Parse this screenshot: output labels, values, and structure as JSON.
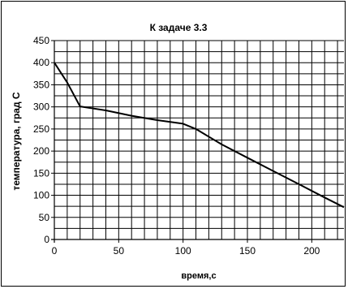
{
  "chart_data": {
    "type": "line",
    "title": "К задаче 3.3",
    "xlabel": "время,с",
    "ylabel": "температура, град С",
    "xlim": [
      0,
      225
    ],
    "ylim": [
      0,
      450
    ],
    "x_ticks": [
      0,
      50,
      100,
      150,
      200
    ],
    "y_ticks": [
      0,
      50,
      100,
      150,
      200,
      250,
      300,
      350,
      400,
      450
    ],
    "x_minor_step": 10,
    "y_minor_step": 25,
    "grid": true,
    "legend": "none",
    "line_color": "#000000",
    "series": [
      {
        "x": [
          0,
          10,
          20,
          40,
          60,
          80,
          100,
          110,
          130,
          150,
          170,
          190,
          210,
          225
        ],
        "y": [
          400,
          355,
          301,
          292,
          280,
          270,
          262,
          250,
          215,
          185,
          155,
          125,
          95,
          73
        ]
      }
    ]
  }
}
